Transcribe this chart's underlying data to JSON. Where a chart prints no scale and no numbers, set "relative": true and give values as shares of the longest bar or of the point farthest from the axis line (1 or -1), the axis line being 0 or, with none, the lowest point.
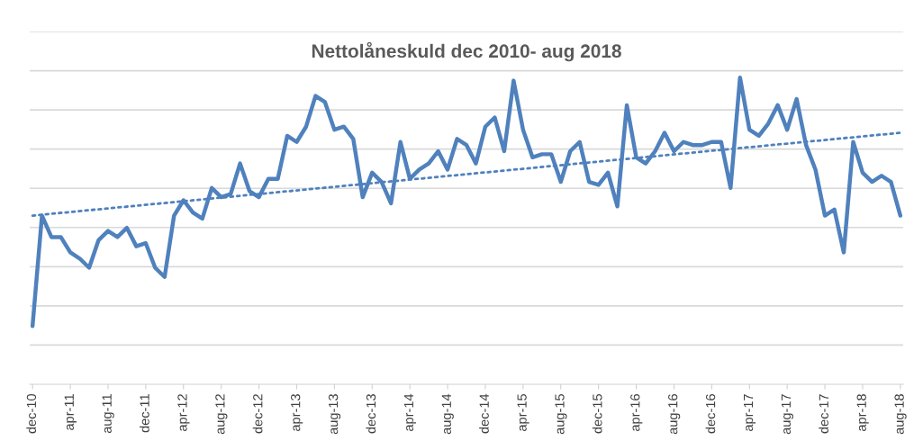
{
  "chart_data": {
    "type": "line",
    "title": "Nettolåneskuld dec 2010- aug 2018",
    "relative": true,
    "grid": "y",
    "legend": false,
    "categories": [
      "dec-10",
      null,
      null,
      null,
      "apr-11",
      null,
      null,
      null,
      "aug-11",
      null,
      null,
      null,
      "dec-11",
      null,
      null,
      null,
      "apr-12",
      null,
      null,
      null,
      "aug-12",
      null,
      null,
      null,
      "dec-12",
      null,
      null,
      null,
      "apr-13",
      null,
      null,
      null,
      "aug-13",
      null,
      null,
      null,
      "dec-13",
      null,
      null,
      null,
      "apr-14",
      null,
      null,
      null,
      "aug-14",
      null,
      null,
      null,
      "dec-14",
      null,
      null,
      null,
      "apr-15",
      null,
      null,
      null,
      "aug-15",
      null,
      null,
      null,
      "dec-15",
      null,
      null,
      null,
      "apr-16",
      null,
      null,
      null,
      "aug-16",
      null,
      null,
      null,
      "dec-16",
      null,
      null,
      null,
      "apr-17",
      null,
      null,
      null,
      "aug-17",
      null,
      null,
      null,
      "dec-17",
      null,
      null,
      null,
      "apr-18",
      null,
      null,
      null,
      "aug-18"
    ],
    "series": [
      {
        "color": "#4f81bd",
        "line_style": "solid",
        "values": [
          0.19,
          0.55,
          0.48,
          0.48,
          0.43,
          0.41,
          0.38,
          0.47,
          0.5,
          0.48,
          0.51,
          0.45,
          0.46,
          0.38,
          0.35,
          0.55,
          0.6,
          0.56,
          0.54,
          0.64,
          0.61,
          0.62,
          0.72,
          0.63,
          0.61,
          0.67,
          0.67,
          0.81,
          0.79,
          0.84,
          0.94,
          0.92,
          0.83,
          0.84,
          0.8,
          0.61,
          0.69,
          0.66,
          0.59,
          0.79,
          0.67,
          0.7,
          0.72,
          0.76,
          0.7,
          0.8,
          0.78,
          0.72,
          0.84,
          0.87,
          0.76,
          0.99,
          0.83,
          0.74,
          0.75,
          0.75,
          0.66,
          0.76,
          0.79,
          0.66,
          0.65,
          0.69,
          0.58,
          0.91,
          0.74,
          0.72,
          0.76,
          0.82,
          0.76,
          0.79,
          0.78,
          0.78,
          0.79,
          0.79,
          0.64,
          1,
          0.83,
          0.81,
          0.85,
          0.91,
          0.83,
          0.93,
          0.78,
          0.7,
          0.55,
          0.57,
          0.43,
          0.79,
          0.69,
          0.66,
          0.68,
          0.66,
          0.55
        ]
      },
      {
        "color": "#4f81bd",
        "line_style": "dotted",
        "values": [
          0.55,
          null,
          null,
          null,
          null,
          null,
          null,
          null,
          null,
          null,
          null,
          null,
          null,
          null,
          null,
          null,
          null,
          null,
          null,
          null,
          null,
          null,
          null,
          null,
          null,
          null,
          null,
          null,
          null,
          null,
          null,
          null,
          null,
          null,
          null,
          null,
          null,
          null,
          null,
          null,
          null,
          null,
          null,
          null,
          null,
          null,
          null,
          null,
          null,
          null,
          null,
          null,
          null,
          null,
          null,
          null,
          null,
          null,
          null,
          null,
          null,
          null,
          null,
          null,
          null,
          null,
          null,
          null,
          null,
          null,
          null,
          null,
          null,
          null,
          null,
          null,
          null,
          null,
          null,
          null,
          null,
          null,
          null,
          null,
          null,
          null,
          null,
          null,
          null,
          null,
          null,
          null,
          0.82
        ]
      }
    ]
  }
}
